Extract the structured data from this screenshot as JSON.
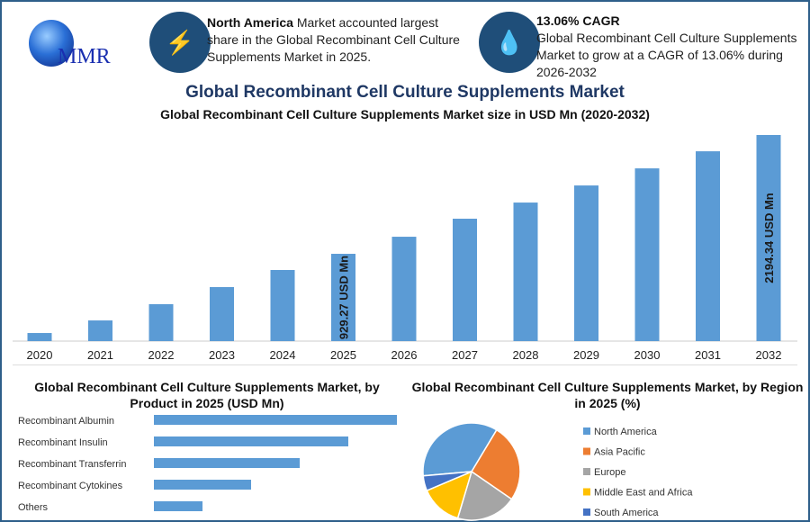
{
  "logo": {
    "text": "MMR"
  },
  "header": {
    "card1": {
      "icon": "lightning-icon",
      "bold": "North America",
      "text": " Market accounted largest share in the Global Recombinant Cell Culture Supplements Market in 2025."
    },
    "card2": {
      "icon": "drop-icon",
      "bold": "13.06% CAGR",
      "text": "Global Recombinant Cell Culture Supplements Market to grow at a CAGR of 13.06% during 2026-2032"
    }
  },
  "main_title": "Global Recombinant Cell Culture Supplements Market",
  "colors": {
    "bar": "#5b9bd5",
    "header_circle": "#1f4e79",
    "title": "#1f3864"
  },
  "chart_data": [
    {
      "type": "bar",
      "title": "Global Recombinant Cell Culture Supplements Market size in USD Mn (2020-2032)",
      "categories": [
        "2020",
        "2021",
        "2022",
        "2023",
        "2024",
        "2025",
        "2026",
        "2027",
        "2028",
        "2029",
        "2030",
        "2031",
        "2032"
      ],
      "values": [
        86,
        220,
        393,
        575,
        757,
        929.27,
        1111,
        1303,
        1475,
        1657,
        1839,
        2021,
        2194.34
      ],
      "data_labels": {
        "2025": "929.27 USD Mn",
        "2032": "2194.34 USD Mn"
      },
      "ylim": [
        0,
        2194.34
      ],
      "grid": false
    },
    {
      "type": "bar",
      "orientation": "horizontal",
      "title": "Global Recombinant Cell Culture Supplements Market, by Product in 2025 (USD Mn)",
      "categories": [
        "Recombinant Albumin",
        "Recombinant Insulin",
        "Recombinant Transferrin",
        "Recombinant Cytokines",
        "Others"
      ],
      "values": [
        310,
        248,
        186,
        124,
        62
      ],
      "grid": false
    },
    {
      "type": "pie",
      "title": "Global Recombinant Cell Culture Supplements Market, by Region in 2025 (%)",
      "labels": [
        "North America",
        "Asia Pacific",
        "Europe",
        "Middle East and Africa",
        "South America"
      ],
      "values": [
        35,
        26,
        20,
        14,
        5
      ],
      "colors": [
        "#5b9bd5",
        "#ed7d31",
        "#a5a5a5",
        "#ffc000",
        "#4472c4"
      ],
      "legend": "right"
    }
  ]
}
